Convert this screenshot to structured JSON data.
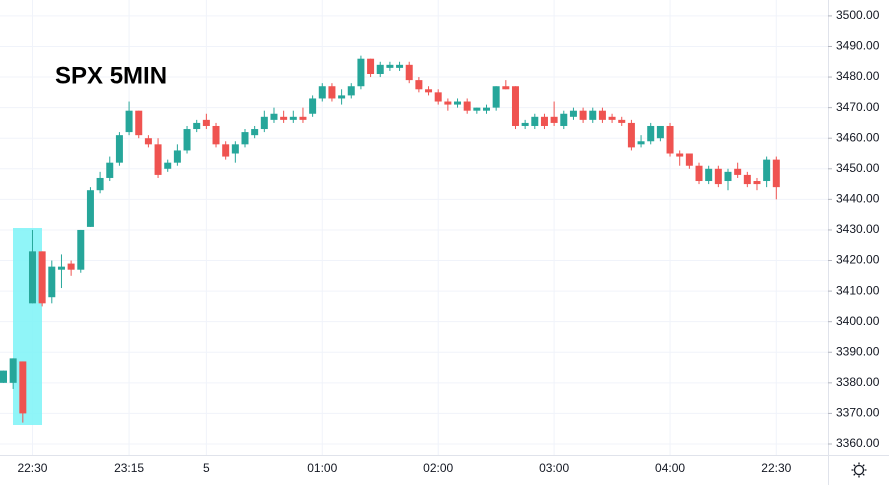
{
  "chart_data": {
    "type": "candlestick",
    "title": "SPX 5MIN",
    "categories": [
      null,
      null,
      null,
      "22:30",
      null,
      null,
      null,
      null,
      null,
      null,
      null,
      null,
      null,
      "23:15",
      null,
      null,
      null,
      null,
      null,
      null,
      null,
      "5",
      null,
      null,
      null,
      null,
      null,
      null,
      null,
      null,
      null,
      null,
      null,
      "01:00",
      null,
      null,
      null,
      null,
      null,
      null,
      null,
      null,
      null,
      null,
      null,
      "02:00",
      null,
      null,
      null,
      null,
      null,
      null,
      null,
      null,
      null,
      null,
      null,
      "03:00",
      null,
      null,
      null,
      null,
      null,
      null,
      null,
      null,
      null,
      null,
      null,
      "04:00",
      null,
      null,
      null,
      null,
      null,
      null,
      null,
      null,
      null,
      null,
      "22:30"
    ],
    "open": [
      3380,
      3380,
      3387,
      3406,
      3423,
      3408,
      3417,
      3419,
      3417,
      3431,
      3443,
      3447,
      3452,
      3462,
      3469,
      3460,
      3458,
      3450,
      3452,
      3456,
      3463,
      3466,
      3464,
      3458,
      3455,
      3458,
      3461,
      3463,
      3466,
      3467,
      3466,
      3467,
      3468,
      3473,
      3477,
      3473,
      3474,
      3477,
      3486,
      3481,
      3483,
      3483,
      3484,
      3479,
      3476,
      3475,
      3472,
      3471,
      3472,
      3469,
      3469,
      3470,
      3477,
      3477,
      3464,
      3464,
      3467,
      3467,
      3464,
      3467,
      3469,
      3466,
      3469,
      3467,
      3466,
      3465,
      3458,
      3459,
      3460,
      3464,
      3455,
      3455,
      3451,
      3446,
      3450,
      3446,
      3450,
      3448,
      3446,
      3446,
      3453
    ],
    "high": [
      3384,
      3388,
      3387,
      3430,
      3423,
      3420,
      3422,
      3420,
      3430,
      3444,
      3449,
      3454,
      3462,
      3472,
      3469,
      3461,
      3460,
      3453,
      3458,
      3464,
      3466,
      3468,
      3465,
      3459,
      3459,
      3463,
      3464,
      3469,
      3470,
      3469,
      3469,
      3470,
      3474,
      3478,
      3478,
      3476,
      3478,
      3487,
      3486,
      3485,
      3485,
      3485,
      3485,
      3480,
      3477,
      3476,
      3473,
      3473,
      3473,
      3470,
      3471,
      3477,
      3479,
      3477,
      3466,
      3468,
      3468,
      3472,
      3469,
      3470,
      3470,
      3470,
      3470,
      3468,
      3467,
      3466,
      3461,
      3465,
      3464,
      3465,
      3456,
      3455,
      3452,
      3451,
      3451,
      3450,
      3452,
      3449,
      3447,
      3454,
      3454
    ],
    "low": [
      3380,
      3378,
      3367,
      3406,
      3405,
      3406,
      3411,
      3415,
      3416,
      3431,
      3442,
      3446,
      3451,
      3461,
      3460,
      3457,
      3447,
      3449,
      3451,
      3455,
      3462,
      3463,
      3457,
      3453,
      3452,
      3457,
      3460,
      3462,
      3465,
      3465,
      3465,
      3465,
      3467,
      3472,
      3472,
      3471,
      3473,
      3476,
      3480,
      3480,
      3482,
      3482,
      3478,
      3475,
      3474,
      3471,
      3469,
      3470,
      3468,
      3468,
      3468,
      3469,
      3476,
      3463,
      3463,
      3463,
      3463,
      3464,
      3463,
      3466,
      3465,
      3465,
      3465,
      3465,
      3464,
      3456,
      3457,
      3458,
      3459,
      3454,
      3451,
      3450,
      3445,
      3445,
      3444,
      3443,
      3447,
      3444,
      3443,
      3444,
      3440
    ],
    "close": [
      3384,
      3388,
      3370,
      3423,
      3406,
      3418,
      3418,
      3417,
      3430,
      3443,
      3447,
      3452,
      3461,
      3469,
      3461,
      3458,
      3448,
      3452,
      3456,
      3463,
      3465,
      3464,
      3458,
      3454,
      3458,
      3462,
      3463,
      3467,
      3468,
      3466,
      3467,
      3466,
      3473,
      3477,
      3473,
      3474,
      3477,
      3486,
      3481,
      3484,
      3484,
      3484,
      3479,
      3476,
      3475,
      3472,
      3471,
      3472,
      3469,
      3470,
      3470,
      3477,
      3476,
      3464,
      3465,
      3467,
      3464,
      3465,
      3468,
      3469,
      3466,
      3469,
      3466,
      3466,
      3465,
      3457,
      3459,
      3464,
      3464,
      3455,
      3454,
      3451,
      3446,
      3450,
      3445,
      3449,
      3448,
      3445,
      3445,
      3453,
      3444
    ],
    "up_color": "#26a69a",
    "down_color": "#ef5350",
    "ylim": [
      3356.4,
      3505.2
    ],
    "yticks": [
      {
        "value": 3360,
        "label": "3360.00"
      },
      {
        "value": 3370,
        "label": "3370.00"
      },
      {
        "value": 3380,
        "label": "3380.00"
      },
      {
        "value": 3390,
        "label": "3390.00"
      },
      {
        "value": 3400,
        "label": "3400.00"
      },
      {
        "value": 3410,
        "label": "3410.00"
      },
      {
        "value": 3420,
        "label": "3420.00"
      },
      {
        "value": 3430,
        "label": "3430.00"
      },
      {
        "value": 3440,
        "label": "3440.00"
      },
      {
        "value": 3450,
        "label": "3450.00"
      },
      {
        "value": 3460,
        "label": "3460.00"
      },
      {
        "value": 3470,
        "label": "3470.00"
      },
      {
        "value": 3480,
        "label": "3480.00"
      },
      {
        "value": 3490,
        "label": "3490.00"
      },
      {
        "value": 3500,
        "label": "3500.00"
      }
    ],
    "grid": true
  }
}
